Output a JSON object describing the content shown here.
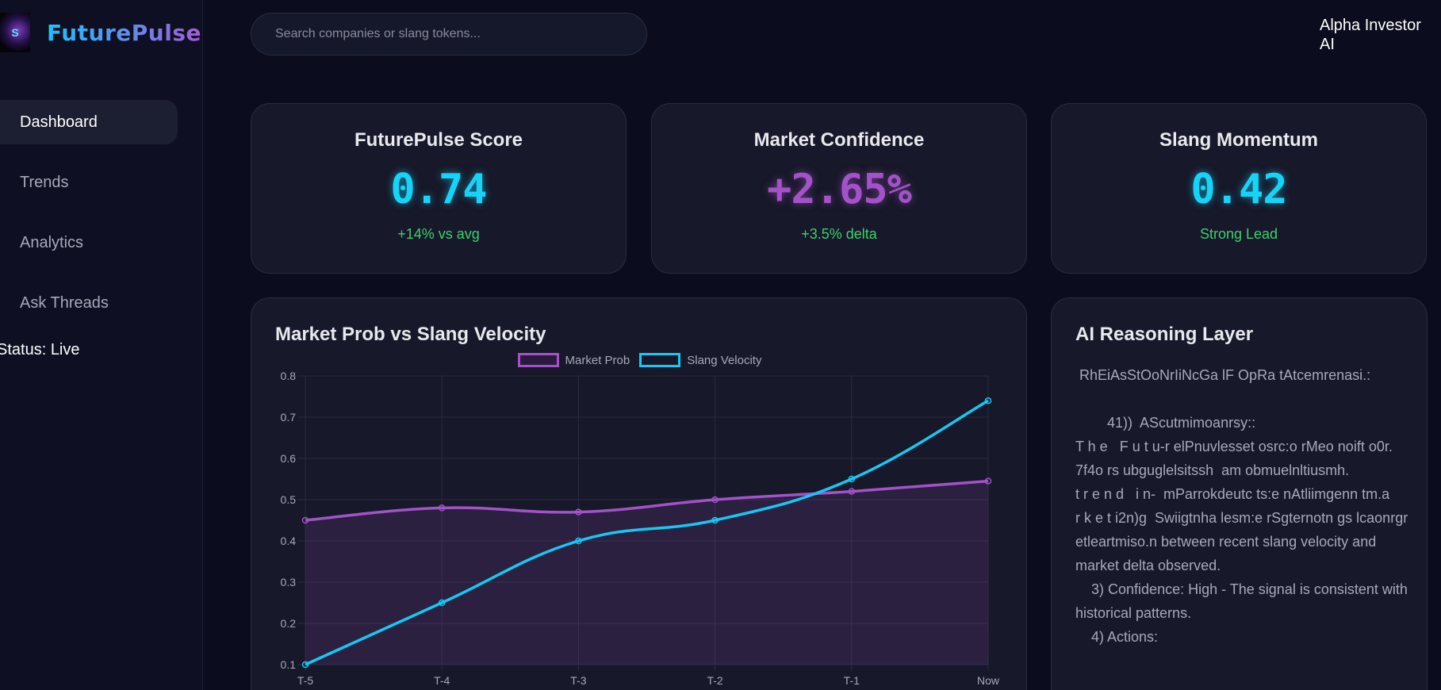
{
  "brand": {
    "name": "FuturePulse",
    "logo_text": "S"
  },
  "nav": {
    "items": [
      {
        "label": "Dashboard",
        "active": true
      },
      {
        "label": "Trends",
        "active": false
      },
      {
        "label": "Analytics",
        "active": false
      },
      {
        "label": "Ask Threads",
        "active": false
      }
    ],
    "status": "Status: Live"
  },
  "search": {
    "placeholder": "Search companies or slang tokens..."
  },
  "user": {
    "name": "Alpha Investor AI"
  },
  "stats": [
    {
      "title": "FuturePulse Score",
      "value": "0.74",
      "sub": "+14% vs avg",
      "color": "#16d4f8"
    },
    {
      "title": "Market Confidence",
      "value": "+2.65%",
      "sub": "+3.5% delta",
      "color": "#a352c8"
    },
    {
      "title": "Slang Momentum",
      "value": "0.42",
      "sub": "Strong Lead",
      "color": "#16d4f8"
    }
  ],
  "chart_data": {
    "type": "line",
    "title": "Market Prob vs Slang Velocity",
    "categories": [
      "T-5",
      "T-4",
      "T-3",
      "T-2",
      "T-1",
      "Now"
    ],
    "series": [
      {
        "name": "Market Prob",
        "values": [
          0.45,
          0.48,
          0.47,
          0.5,
          0.52,
          0.545
        ],
        "color": "#a352c8",
        "fill": true
      },
      {
        "name": "Slang Velocity",
        "values": [
          0.1,
          0.25,
          0.4,
          0.45,
          0.55,
          0.74
        ],
        "color": "#16c8f4",
        "fill": false
      }
    ],
    "yticks": [
      "0.1",
      "0.2",
      "0.3",
      "0.4",
      "0.5",
      "0.6",
      "0.7",
      "0.8"
    ],
    "ylim": [
      0.1,
      0.8
    ],
    "xlabel": "",
    "ylabel": "",
    "grid": true,
    "legend": "top-center"
  },
  "reasoning": {
    "title": "AI Reasoning Layer",
    "text": " RhEiAsStOoNrIiNcGa lF OpRa tAtcemrenasi.:\n\n        41))  AScutmimoanrsy::\nT h e   F u t u-r elPnuvlesset osrc:o rMeo noift o0r. 7f4o rs ubguglelsitssh  am obmuelnltiusmh.\nt r e n d   i n-  mParrokdeutc ts:e nAtliimgenn tm.a\nr k e t i2n)g  Swiigtnha lesm:e rSgternotn gs lcaonrgr etleartmiso.n between recent slang velocity and market delta observed.\n    3) Confidence: High - The signal is consistent with historical patterns.\n    4) Actions:"
  }
}
